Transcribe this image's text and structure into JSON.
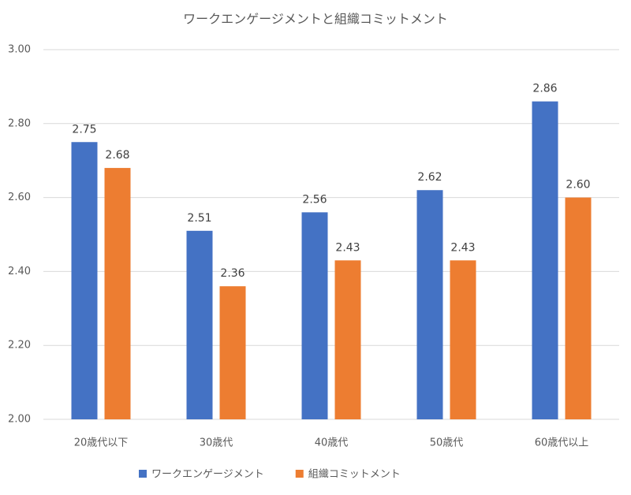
{
  "chart_data": {
    "type": "bar",
    "title": "ワークエンゲージメントと組織コミットメント",
    "categories": [
      "20歳代以下",
      "30歳代",
      "40歳代",
      "50歳代",
      "60歳代以上"
    ],
    "series": [
      {
        "name": "ワークエンゲージメント",
        "color": "#4472c4",
        "values": [
          2.75,
          2.51,
          2.56,
          2.62,
          2.86
        ],
        "value_labels": [
          "2.75",
          "2.51",
          "2.56",
          "2.62",
          "2.86"
        ]
      },
      {
        "name": "組織コミットメント",
        "color": "#ed7d31",
        "values": [
          2.68,
          2.36,
          2.43,
          2.43,
          2.6
        ],
        "value_labels": [
          "2.68",
          "2.36",
          "2.43",
          "2.43",
          "2.60"
        ]
      }
    ],
    "ylim": [
      2,
      3
    ],
    "yticks": [
      {
        "value": 2,
        "label": "2.00"
      },
      {
        "value": 2.2,
        "label": "2.20"
      },
      {
        "value": 2.4,
        "label": "2.40"
      },
      {
        "value": 2.6,
        "label": "2.60"
      },
      {
        "value": 2.8,
        "label": "2.80"
      },
      {
        "value": 3,
        "label": "3.00"
      }
    ],
    "grid": true,
    "legend": "bottom"
  }
}
